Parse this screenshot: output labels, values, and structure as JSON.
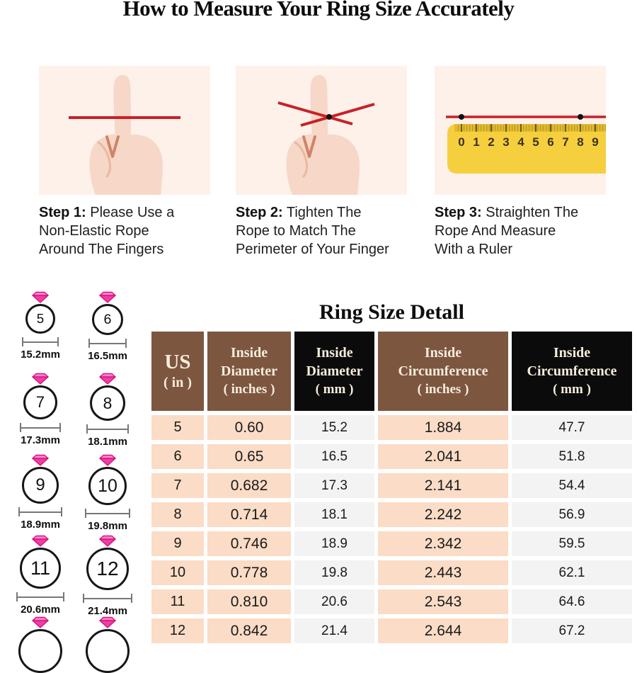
{
  "title": "How to Measure Your Ring Size Accurately",
  "steps": [
    {
      "bold": "Step 1:",
      "line1": " Please Use a",
      "line2": "Non-Elastic Rope",
      "line3": "Around The Fingers"
    },
    {
      "bold": "Step 2:",
      "line1": " Tighten The",
      "line2": "Rope to Match The",
      "line3": "Perimeter of Your Finger"
    },
    {
      "bold": "Step 3:",
      "line1": " Straighten The",
      "line2": "Rope And Measure",
      "line3": "With a Ruler"
    }
  ],
  "ruler": {
    "numbers": [
      "0",
      "1",
      "2",
      "3",
      "4",
      "5",
      "6",
      "7",
      "8",
      "9"
    ]
  },
  "rings": [
    {
      "size": "5",
      "label": "15.2mm"
    },
    {
      "size": "6",
      "label": "16.5mm"
    },
    {
      "size": "7",
      "label": "17.3mm"
    },
    {
      "size": "8",
      "label": "18.1mm"
    },
    {
      "size": "9",
      "label": "18.9mm"
    },
    {
      "size": "10",
      "label": "19.8mm"
    },
    {
      "size": "11",
      "label": "20.6mm"
    },
    {
      "size": "12",
      "label": "21.4mm"
    }
  ],
  "table": {
    "heading": "Ring Size Detall",
    "columns": [
      {
        "l1": "US",
        "l2": "( in )"
      },
      {
        "l1": "Inside",
        "l2": "Diameter",
        "l3": "( inches )"
      },
      {
        "l1": "Inside",
        "l2": "Diameter",
        "l3": "( mm )"
      },
      {
        "l1": "Inside",
        "l2": "Circumference",
        "l3": "( inches )"
      },
      {
        "l1": "Inside",
        "l2": "Circumference",
        "l3": "( mm )"
      }
    ],
    "rows": [
      [
        "5",
        "0.60",
        "15.2",
        "1.884",
        "47.7"
      ],
      [
        "6",
        "0.65",
        "16.5",
        "2.041",
        "51.8"
      ],
      [
        "7",
        "0.682",
        "17.3",
        "2.141",
        "54.4"
      ],
      [
        "8",
        "0.714",
        "18.1",
        "2.242",
        "56.9"
      ],
      [
        "9",
        "0.746",
        "18.9",
        "2.342",
        "59.5"
      ],
      [
        "10",
        "0.778",
        "19.8",
        "2.443",
        "62.1"
      ],
      [
        "11",
        "0.810",
        "20.6",
        "2.543",
        "64.6"
      ],
      [
        "12",
        "0.842",
        "21.4",
        "2.644",
        "67.2"
      ]
    ]
  },
  "colors": {
    "rope_red": "#c82128",
    "gem_pink": "#ef3da6",
    "header_brown": "#7d5640",
    "header_black": "#0b0b0b",
    "cell_peach": "#fbdcc6",
    "cell_gray": "#f3f3f3",
    "panel_bg": "#fdf1ea",
    "ruler_yellow": "#f6cf3f"
  }
}
